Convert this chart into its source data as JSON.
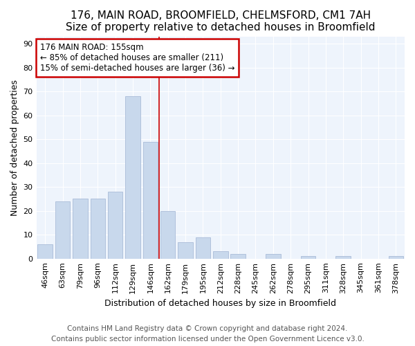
{
  "title": "176, MAIN ROAD, BROOMFIELD, CHELMSFORD, CM1 7AH",
  "subtitle": "Size of property relative to detached houses in Broomfield",
  "xlabel": "Distribution of detached houses by size in Broomfield",
  "ylabel": "Number of detached properties",
  "categories": [
    "46sqm",
    "63sqm",
    "79sqm",
    "96sqm",
    "112sqm",
    "129sqm",
    "146sqm",
    "162sqm",
    "179sqm",
    "195sqm",
    "212sqm",
    "228sqm",
    "245sqm",
    "262sqm",
    "278sqm",
    "295sqm",
    "311sqm",
    "328sqm",
    "345sqm",
    "361sqm",
    "378sqm"
  ],
  "values": [
    6,
    24,
    25,
    25,
    28,
    68,
    49,
    20,
    7,
    9,
    3,
    2,
    0,
    2,
    0,
    1,
    0,
    1,
    0,
    0,
    1
  ],
  "bar_color": "#c8d8ec",
  "bar_edge_color": "#aabcd8",
  "vline_x_index": 6.5,
  "vline_color": "#cc0000",
  "annotation_text": "176 MAIN ROAD: 155sqm\n← 85% of detached houses are smaller (211)\n15% of semi-detached houses are larger (36) →",
  "annotation_box_color": "#ffffff",
  "annotation_box_edge_color": "#cc0000",
  "ylim": [
    0,
    93
  ],
  "yticks": [
    0,
    10,
    20,
    30,
    40,
    50,
    60,
    70,
    80,
    90
  ],
  "bg_color": "#ffffff",
  "plot_bg_color": "#eef4fc",
  "grid_color": "#ffffff",
  "footer": "Contains HM Land Registry data © Crown copyright and database right 2024.\nContains public sector information licensed under the Open Government Licence v3.0.",
  "title_fontsize": 11,
  "subtitle_fontsize": 10,
  "xlabel_fontsize": 9,
  "ylabel_fontsize": 9,
  "tick_fontsize": 8,
  "footer_fontsize": 7.5,
  "annot_fontsize": 8.5
}
